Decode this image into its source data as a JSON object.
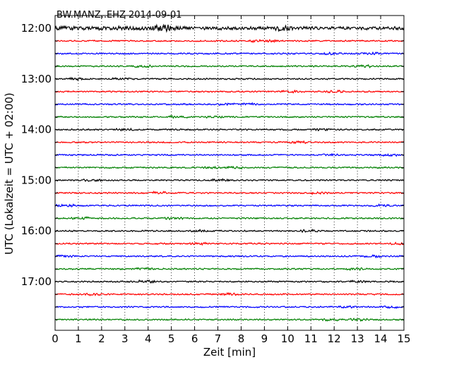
{
  "chart_data": {
    "type": "line",
    "title": "BW.MANZ..EHZ 2014-09-01",
    "xlabel": "Zeit  [min]",
    "ylabel": "UTC (Lokalzeit = UTC + 02:00)",
    "xlim": [
      0,
      15
    ],
    "x_ticks": [
      0,
      1,
      2,
      3,
      4,
      5,
      6,
      7,
      8,
      9,
      10,
      11,
      12,
      13,
      14,
      15
    ],
    "y_tick_labels": [
      "12:00",
      "13:00",
      "14:00",
      "15:00",
      "16:00",
      "17:00"
    ],
    "trace_start_times": [
      "12:00",
      "12:15",
      "12:30",
      "12:45",
      "13:00",
      "13:15",
      "13:30",
      "13:45",
      "14:00",
      "14:15",
      "14:30",
      "14:45",
      "15:00",
      "15:15",
      "15:30",
      "15:45",
      "16:00",
      "16:15",
      "16:30",
      "16:45",
      "17:00",
      "17:15",
      "17:30",
      "17:45"
    ],
    "trace_colors": [
      "#000000",
      "#ff0000",
      "#0000ff",
      "#008000"
    ],
    "vertical_grid": "dotted",
    "trace_window_minutes": 15
  }
}
